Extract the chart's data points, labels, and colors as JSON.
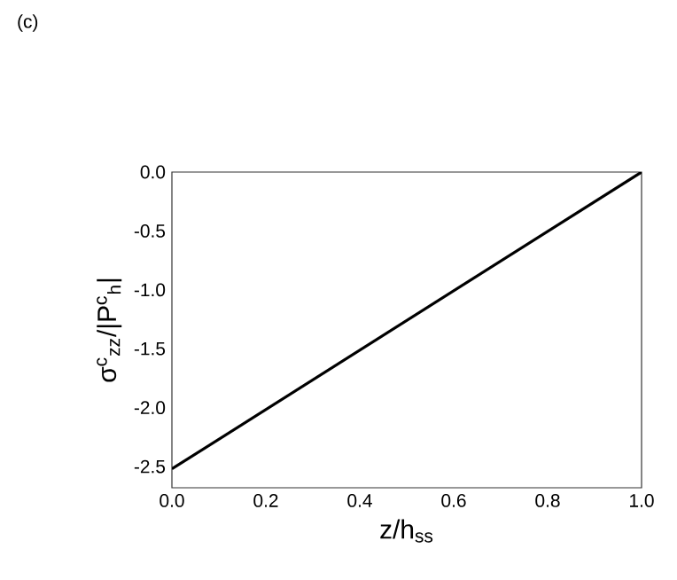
{
  "chart_data": {
    "type": "line",
    "annotations": [
      "(c)"
    ],
    "xlabel": "z/h$_{ss}$",
    "ylabel": "σ$^{c}$$_{zz}$/|P$^{c}$$_{h}$|",
    "x": [
      0,
      1
    ],
    "series": [
      {
        "color": "#000000",
        "values": [
          -2.52,
          0.0
        ]
      }
    ],
    "xlim": [
      0,
      1
    ],
    "ylim": [
      -2.68,
      0.0
    ],
    "xticks": [
      {
        "value": 0,
        "label": "0.0"
      },
      {
        "value": 0.2,
        "label": "0.2"
      },
      {
        "value": 0.4,
        "label": "0.4"
      },
      {
        "value": 0.6,
        "label": "0.6"
      },
      {
        "value": 0.8,
        "label": "0.8"
      },
      {
        "value": 1,
        "label": "1.0"
      }
    ],
    "yticks": [
      {
        "value": 0,
        "label": "0.0"
      },
      {
        "value": -0.5,
        "label": "-0.5"
      },
      {
        "value": -1,
        "label": "-1.0"
      },
      {
        "value": -1.5,
        "label": "-1.5"
      },
      {
        "value": -2,
        "label": "-2.0"
      },
      {
        "value": -2.5,
        "label": "-2.5"
      }
    ]
  }
}
